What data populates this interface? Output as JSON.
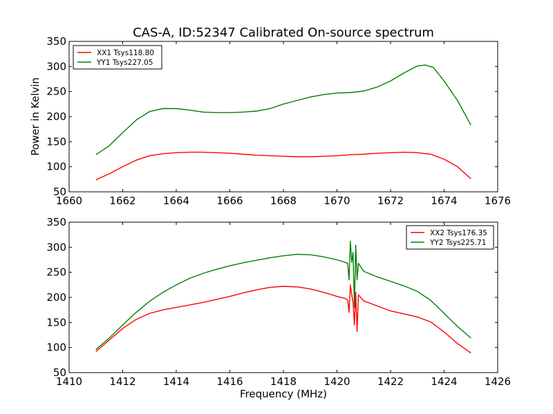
{
  "title": "CAS-A, ID:52347 Calibrated On-source spectrum",
  "colors": {
    "xx": "#ff0000",
    "yy": "#008000"
  },
  "chart_data": [
    {
      "type": "line",
      "ylabel": "Power in Kelvin",
      "xlabel": "",
      "xlim": [
        1660,
        1676
      ],
      "ylim": [
        50,
        350
      ],
      "xticks": [
        "1660",
        "1662",
        "1664",
        "1666",
        "1668",
        "1670",
        "1672",
        "1674",
        "1676"
      ],
      "yticks": [
        "50",
        "100",
        "150",
        "200",
        "250",
        "300",
        "350"
      ],
      "legend_position": "top-left",
      "series": [
        {
          "name": "XX1 Tsys118.80",
          "color": "#ff0000",
          "x": [
            1661.0,
            1661.5,
            1662.0,
            1662.5,
            1663.0,
            1663.5,
            1664.0,
            1664.5,
            1665.0,
            1665.5,
            1666.0,
            1666.5,
            1667.0,
            1667.5,
            1668.0,
            1668.5,
            1669.0,
            1669.5,
            1670.0,
            1670.5,
            1671.0,
            1671.5,
            1672.0,
            1672.5,
            1673.0,
            1673.5,
            1674.0,
            1674.5,
            1675.0
          ],
          "y": [
            74,
            86,
            100,
            113,
            122,
            126,
            128,
            129,
            129,
            128,
            127,
            125,
            123,
            122,
            121,
            120,
            120,
            121,
            122,
            124,
            125,
            127,
            128,
            129,
            128,
            125,
            115,
            100,
            76
          ]
        },
        {
          "name": "YY1 Tsys227.05",
          "color": "#008000",
          "x": [
            1661.0,
            1661.5,
            1662.0,
            1662.5,
            1663.0,
            1663.5,
            1664.0,
            1664.5,
            1665.0,
            1665.5,
            1666.0,
            1666.5,
            1667.0,
            1667.5,
            1668.0,
            1668.5,
            1669.0,
            1669.5,
            1670.0,
            1670.5,
            1671.0,
            1671.5,
            1672.0,
            1672.5,
            1673.0,
            1673.3,
            1673.6,
            1674.0,
            1674.5,
            1675.0
          ],
          "y": [
            124,
            142,
            168,
            193,
            210,
            216,
            216,
            213,
            209,
            208,
            208,
            209,
            211,
            216,
            225,
            232,
            239,
            244,
            247,
            248,
            251,
            259,
            271,
            287,
            301,
            303,
            298,
            271,
            232,
            183
          ]
        }
      ]
    },
    {
      "type": "line",
      "ylabel": "",
      "xlabel": "Frequency (MHz)",
      "xlim": [
        1410,
        1426
      ],
      "ylim": [
        50,
        350
      ],
      "xticks": [
        "1410",
        "1412",
        "1414",
        "1416",
        "1418",
        "1420",
        "1422",
        "1424",
        "1426"
      ],
      "yticks": [
        "50",
        "100",
        "150",
        "200",
        "250",
        "300",
        "350"
      ],
      "legend_position": "top-right",
      "series": [
        {
          "name": "XX2 Tsys176.35",
          "color": "#ff0000",
          "x": [
            1411.0,
            1411.5,
            1412.0,
            1412.5,
            1413.0,
            1413.5,
            1414.0,
            1414.5,
            1415.0,
            1415.5,
            1416.0,
            1416.5,
            1417.0,
            1417.5,
            1418.0,
            1418.5,
            1419.0,
            1419.5,
            1420.0,
            1420.3,
            1420.4,
            1420.45,
            1420.5,
            1420.55,
            1420.6,
            1420.65,
            1420.7,
            1420.75,
            1420.8,
            1421.0,
            1421.5,
            1422.0,
            1422.5,
            1423.0,
            1423.5,
            1424.0,
            1424.5,
            1425.0
          ],
          "y": [
            92,
            115,
            138,
            156,
            168,
            175,
            180,
            185,
            190,
            196,
            202,
            209,
            215,
            220,
            222,
            221,
            217,
            210,
            202,
            198,
            195,
            170,
            225,
            205,
            190,
            145,
            210,
            132,
            205,
            193,
            183,
            173,
            167,
            161,
            151,
            131,
            108,
            89
          ]
        },
        {
          "name": "YY2 Tsys225.71",
          "color": "#008000",
          "x": [
            1411.0,
            1411.5,
            1412.0,
            1412.5,
            1413.0,
            1413.5,
            1414.0,
            1414.5,
            1415.0,
            1415.5,
            1416.0,
            1416.5,
            1417.0,
            1417.5,
            1418.0,
            1418.5,
            1419.0,
            1419.5,
            1420.0,
            1420.3,
            1420.4,
            1420.45,
            1420.5,
            1420.55,
            1420.6,
            1420.65,
            1420.7,
            1420.75,
            1420.8,
            1421.0,
            1421.5,
            1422.0,
            1422.5,
            1423.0,
            1423.5,
            1424.0,
            1424.5,
            1425.0
          ],
          "y": [
            96,
            119,
            145,
            170,
            192,
            210,
            225,
            238,
            248,
            256,
            263,
            269,
            274,
            279,
            283,
            286,
            285,
            281,
            275,
            270,
            268,
            235,
            312,
            270,
            290,
            180,
            304,
            235,
            268,
            252,
            241,
            232,
            223,
            212,
            194,
            168,
            142,
            119
          ]
        }
      ]
    }
  ]
}
